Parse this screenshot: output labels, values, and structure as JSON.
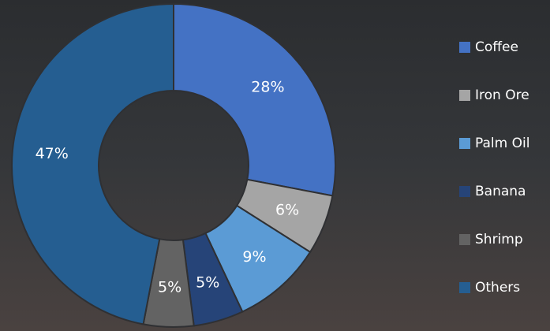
{
  "chart_data": {
    "type": "donut",
    "categories": [
      "Coffee",
      "Iron Ore",
      "Palm Oil",
      "Banana",
      "Shrimp",
      "Others"
    ],
    "values": [
      28,
      6,
      9,
      5,
      5,
      47
    ],
    "value_labels": [
      "28%",
      "6%",
      "9%",
      "5%",
      "5%",
      "47%"
    ],
    "colors": [
      "#4472c4",
      "#a5a5a5",
      "#5b9bd5",
      "#264478",
      "#636363",
      "#255e91"
    ],
    "legend": "right"
  }
}
